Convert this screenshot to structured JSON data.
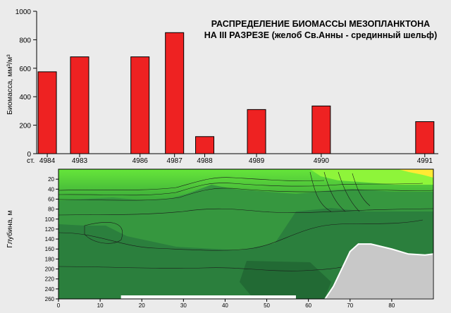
{
  "colors": {
    "background": "#ebebeb",
    "bar_fill": "#ee2222",
    "bar_stroke": "#000000",
    "section_dark": "#1f6a37",
    "section_mid": "#2f8f3c",
    "section_light": "#4fc83a",
    "section_bright": "#99ff33",
    "seabed": "#c8c8c8"
  },
  "chart_data": [
    {
      "type": "bar",
      "title_line1": "РАСПРЕДЕЛЕНИЕ БИОМАССЫ МЕЗОПЛАНКТОНА",
      "title_line2": "НА III РАЗРЕЗЕ (желоб Св.Анны - срединный шельф)",
      "ylabel": "Биомасса, мм³/м³",
      "xlabel_prefix": "ст.",
      "ylim": [
        0,
        1000
      ],
      "yticks": [
        0,
        200,
        400,
        600,
        800,
        1000
      ],
      "categories": [
        "4984",
        "4983",
        "4986",
        "4987",
        "4988",
        "4989",
        "4990",
        "4991"
      ],
      "values": [
        575,
        680,
        680,
        850,
        120,
        310,
        335,
        225
      ],
      "station_distance": [
        0.5,
        8,
        22,
        30,
        37,
        49,
        64,
        88
      ]
    },
    {
      "type": "heatmap",
      "ylabel": "Глубина, м",
      "xlim": [
        0,
        90
      ],
      "ylim": [
        260,
        0
      ],
      "xticks": [
        0,
        10,
        20,
        30,
        40,
        50,
        60,
        70,
        80
      ],
      "yticks": [
        20,
        40,
        60,
        80,
        100,
        120,
        140,
        160,
        180,
        200,
        220,
        240,
        260
      ],
      "seabed": [
        [
          64,
          260
        ],
        [
          66,
          235
        ],
        [
          68,
          200
        ],
        [
          70,
          165
        ],
        [
          72,
          150
        ],
        [
          75,
          150
        ],
        [
          80,
          160
        ],
        [
          84,
          170
        ],
        [
          88,
          172
        ],
        [
          90,
          170
        ],
        [
          90,
          260
        ]
      ],
      "bottom_strip": [
        [
          15,
          260
        ],
        [
          57,
          260
        ]
      ]
    }
  ]
}
